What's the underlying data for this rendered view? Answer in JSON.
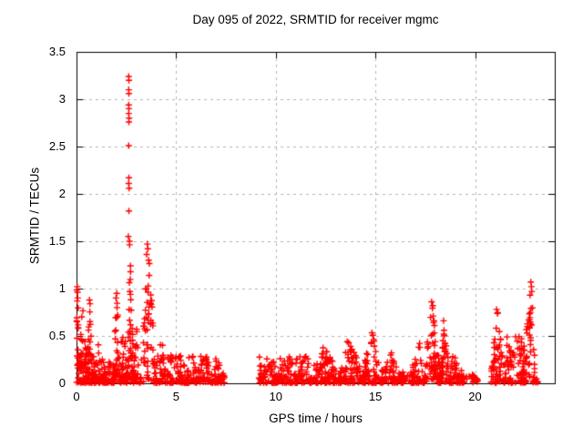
{
  "window_title": "Day 095 of 2022, SRMTID for receiver mgmc",
  "chart_data": {
    "type": "scatter",
    "title": "Day 095 of 2022, SRMTID for receiver mgmc",
    "xlabel": "GPS time / hours",
    "ylabel": "SRMTID / TECUs",
    "xlim": [
      0,
      24
    ],
    "ylim": [
      0,
      3.5
    ],
    "x_tick_values": [
      0,
      5,
      10,
      15,
      20
    ],
    "x_tick_labels": [
      "0",
      "5",
      "10",
      "15",
      "20"
    ],
    "y_tick_values": [
      0,
      0.5,
      1,
      1.5,
      2,
      2.5,
      3,
      3.5
    ],
    "y_tick_labels": [
      "0",
      "0.5",
      "1",
      "1.5",
      "2",
      "2.5",
      "3",
      "3.5"
    ],
    "grid": true,
    "legend": "none",
    "series_name": "SRMTID",
    "marker": "plus",
    "colors": {
      "points": "#ff0000",
      "grid": "#b3b3b3",
      "frame": "#000000",
      "text": "#000000",
      "background": "#ffffff"
    },
    "key_points": [
      [
        2.62,
        3.24
      ],
      [
        2.63,
        3.2
      ],
      [
        2.62,
        3.1
      ],
      [
        2.63,
        3.06
      ],
      [
        2.62,
        2.94
      ],
      [
        2.63,
        2.9
      ],
      [
        2.62,
        2.85
      ],
      [
        2.64,
        2.8
      ],
      [
        2.63,
        2.76
      ],
      [
        2.62,
        2.51
      ],
      [
        2.63,
        2.17
      ],
      [
        2.62,
        2.11
      ],
      [
        2.64,
        2.06
      ],
      [
        2.63,
        1.82
      ],
      [
        2.6,
        1.55
      ],
      [
        2.66,
        1.5
      ],
      [
        3.55,
        1.47
      ],
      [
        3.58,
        1.42
      ],
      [
        3.52,
        1.36
      ],
      [
        3.62,
        1.3
      ],
      [
        0.04,
        1.02
      ],
      [
        0.05,
        0.96
      ],
      [
        0.06,
        0.9
      ],
      [
        2.02,
        0.95
      ],
      [
        1.98,
        0.9
      ],
      [
        0.65,
        0.88
      ],
      [
        0.68,
        0.84
      ],
      [
        17.82,
        0.86
      ],
      [
        17.88,
        0.82
      ],
      [
        18.42,
        0.66
      ],
      [
        21.08,
        0.78
      ],
      [
        21.12,
        0.74
      ],
      [
        22.8,
        1.07
      ],
      [
        22.83,
        1.02
      ],
      [
        22.85,
        0.97
      ],
      [
        22.76,
        0.93
      ]
    ],
    "density_bands": [
      [
        0.0,
        0.1,
        20,
        1.0,
        null,
        1.0
      ],
      [
        0.08,
        0.5,
        60,
        0.92,
        0.5,
        2.0
      ],
      [
        0.45,
        0.9,
        55,
        0.88,
        0.4,
        1.6
      ],
      [
        0.9,
        1.5,
        55,
        0.5,
        0.4,
        2.0
      ],
      [
        1.5,
        1.85,
        20,
        0.28,
        null,
        2.0
      ],
      [
        1.85,
        2.2,
        40,
        0.97,
        0.5,
        1.4
      ],
      [
        2.2,
        2.52,
        28,
        0.55,
        null,
        2.0
      ],
      [
        2.5,
        2.85,
        50,
        1.55,
        0.5,
        1.2
      ],
      [
        2.85,
        3.25,
        30,
        0.62,
        0.4,
        2.0
      ],
      [
        3.25,
        3.95,
        60,
        1.45,
        0.5,
        1.3
      ],
      [
        3.95,
        4.55,
        45,
        0.55,
        0.5,
        2.0
      ],
      [
        4.55,
        5.45,
        60,
        0.3,
        null,
        1.8
      ],
      [
        5.45,
        6.05,
        42,
        0.38,
        0.5,
        1.8
      ],
      [
        6.05,
        6.75,
        48,
        0.46,
        0.5,
        1.8
      ],
      [
        6.75,
        7.45,
        45,
        0.32,
        0.3,
        1.8
      ],
      [
        9.15,
        11.65,
        160,
        0.28,
        null,
        1.8
      ],
      [
        11.65,
        13.1,
        100,
        0.44,
        0.6,
        1.8
      ],
      [
        13.1,
        14.3,
        85,
        0.52,
        0.5,
        1.8
      ],
      [
        14.3,
        15.4,
        80,
        0.56,
        0.5,
        1.8
      ],
      [
        15.4,
        16.35,
        55,
        0.4,
        0.3,
        1.8
      ],
      [
        16.35,
        16.75,
        15,
        0.12,
        null,
        1.5
      ],
      [
        16.25,
        16.4,
        10,
        0.03,
        null,
        1.0
      ],
      [
        16.75,
        17.45,
        50,
        0.5,
        0.8,
        1.7
      ],
      [
        17.45,
        18.25,
        70,
        0.86,
        0.5,
        1.4
      ],
      [
        18.25,
        18.75,
        50,
        0.66,
        0.4,
        1.5
      ],
      [
        18.75,
        19.45,
        45,
        0.38,
        0.2,
        2.0
      ],
      [
        19.45,
        20.15,
        18,
        0.1,
        null,
        1.3
      ],
      [
        20.8,
        21.45,
        55,
        0.78,
        0.5,
        1.5
      ],
      [
        21.45,
        22.35,
        60,
        0.5,
        null,
        1.8
      ],
      [
        22.35,
        23.0,
        60,
        1.05,
        0.75,
        1.2
      ],
      [
        22.35,
        22.6,
        14,
        0.04,
        null,
        1.0
      ],
      [
        22.95,
        23.15,
        8,
        0.06,
        null,
        1.0
      ]
    ]
  }
}
